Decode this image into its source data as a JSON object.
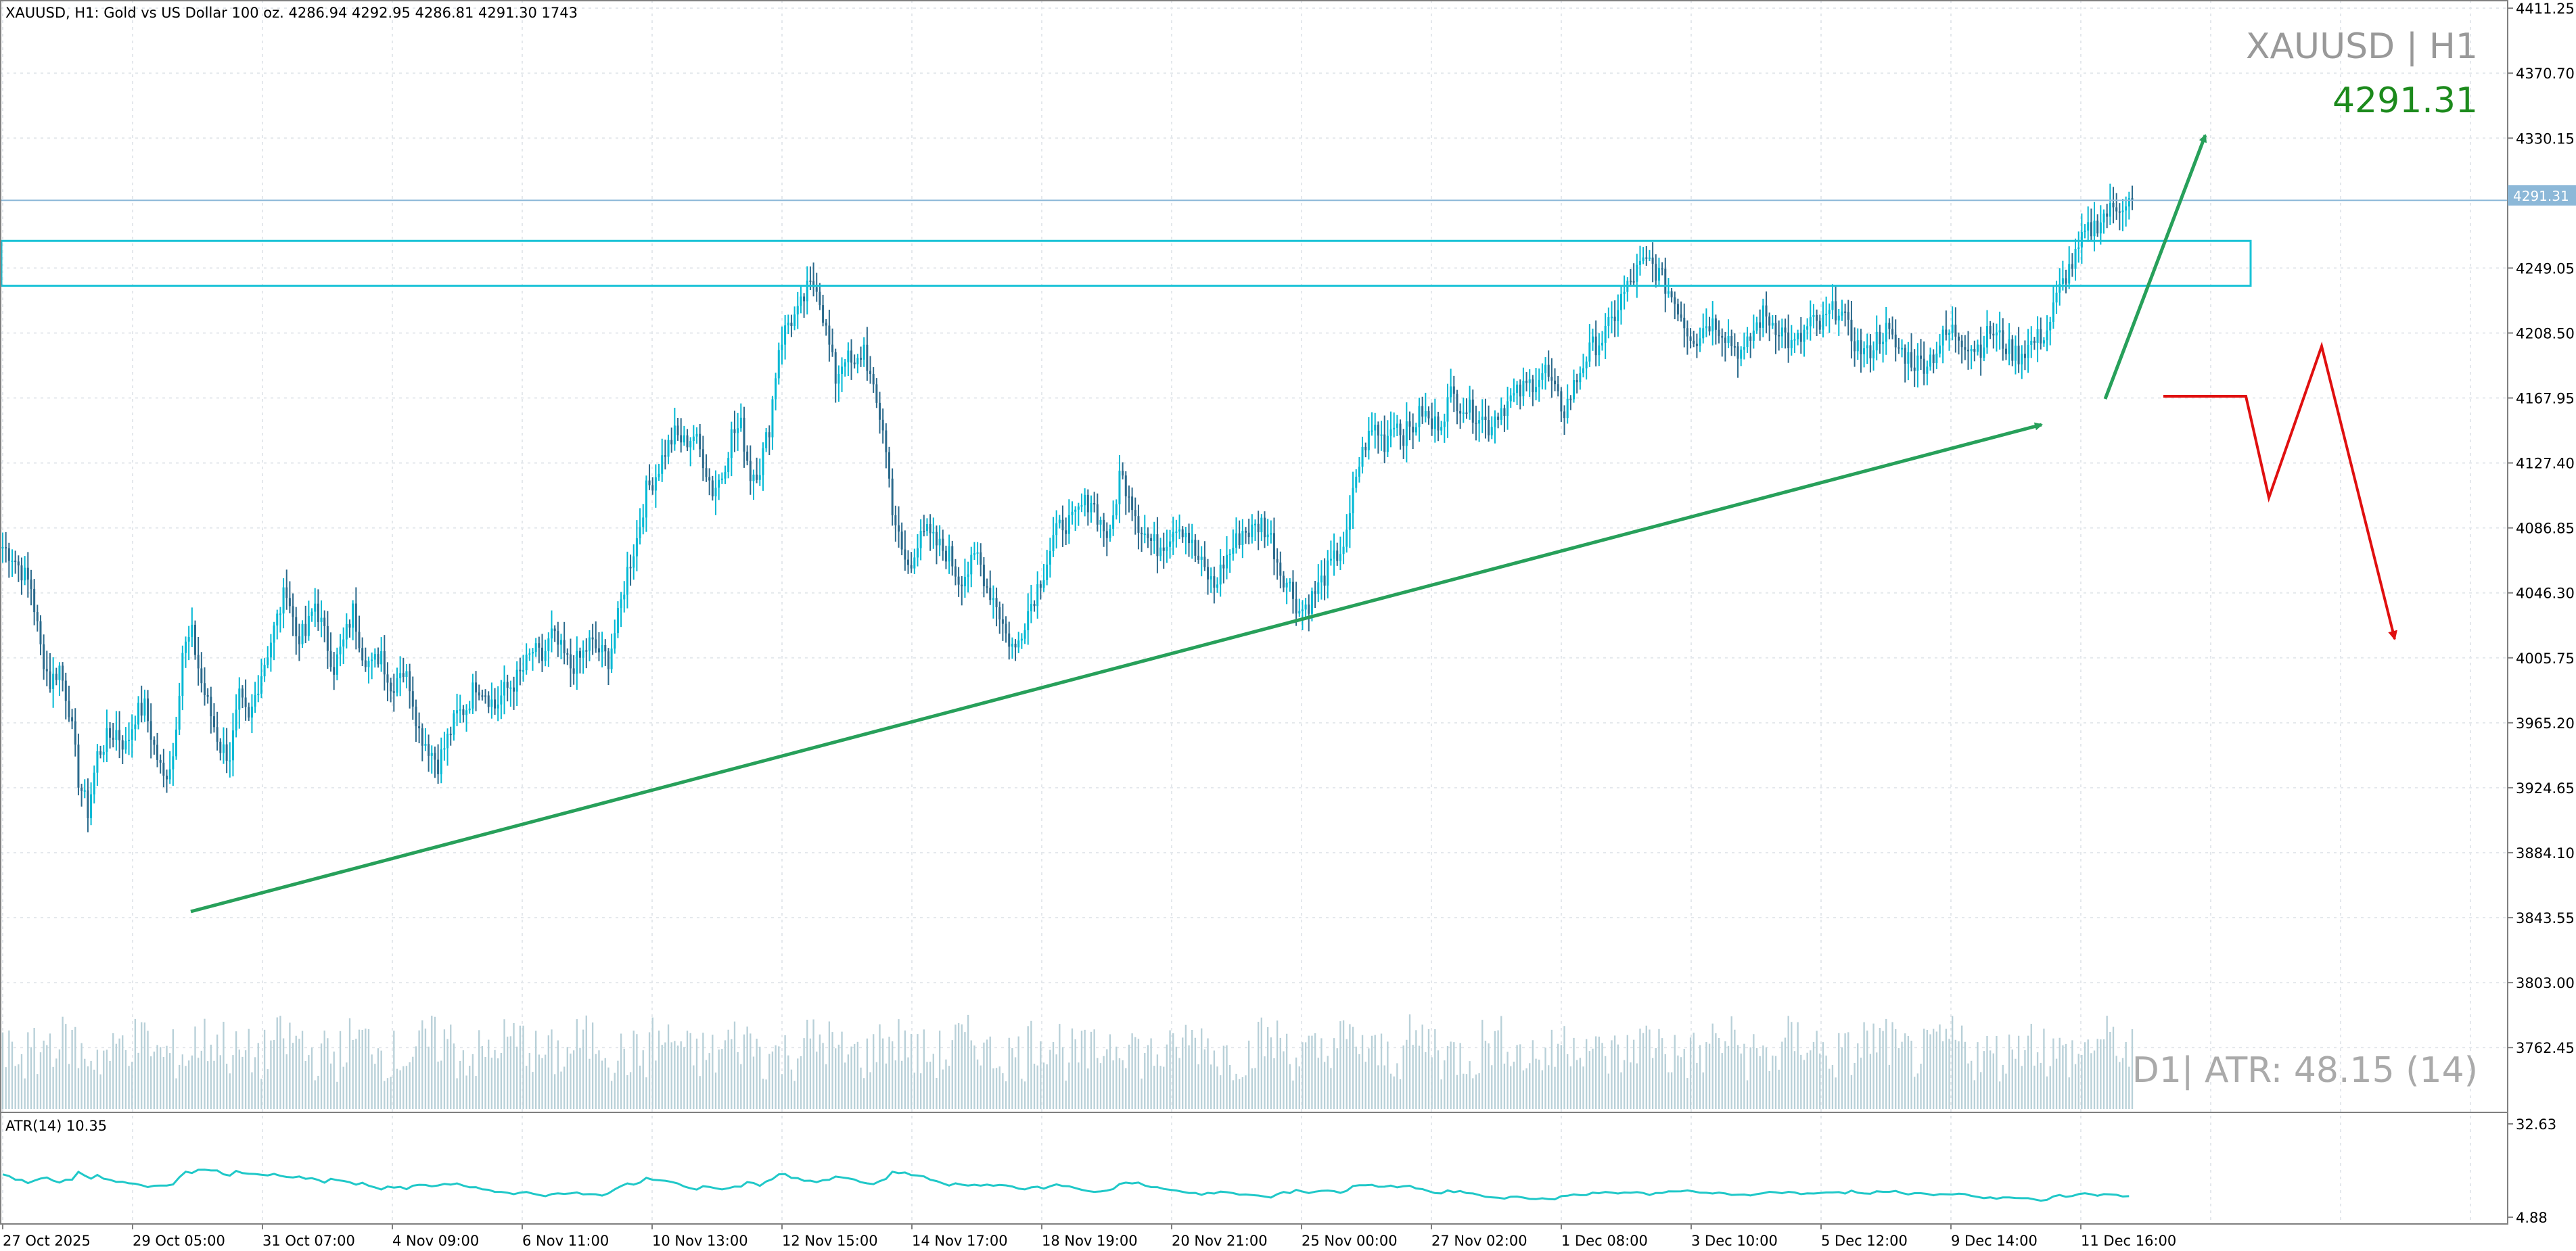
{
  "header": {
    "info": "XAUUSD, H1:  Gold vs US Dollar 100 oz.   4286.94 4292.95 4286.81 4291.30  1743"
  },
  "overlay": {
    "symbol": "XAUUSD | H1",
    "last_price": "4291.31",
    "atr_label": "D1| ATR: 48.15 (14)"
  },
  "price_axis": {
    "ticks": [
      "4411.25",
      "4370.70",
      "4330.15",
      "4249.05",
      "4208.50",
      "4167.95",
      "4127.40",
      "4086.85",
      "4046.30",
      "4005.75",
      "3965.20",
      "3924.65",
      "3884.10",
      "3843.55",
      "3803.00",
      "3762.45"
    ],
    "current_tag": "4291.31"
  },
  "indicator": {
    "label": "ATR(14) 10.35",
    "ticks": [
      "32.63",
      "4.88"
    ]
  },
  "time_axis": {
    "labels": [
      "27 Oct 2025",
      "29 Oct 05:00",
      "31 Oct 07:00",
      "4 Nov 09:00",
      "6 Nov 11:00",
      "10 Nov 13:00",
      "12 Nov 15:00",
      "14 Nov 17:00",
      "18 Nov 19:00",
      "20 Nov 21:00",
      "25 Nov 00:00",
      "27 Nov 02:00",
      "1 Dec 08:00",
      "3 Dec 10:00",
      "5 Dec 12:00",
      "9 Dec 14:00",
      "11 Dec 16:00"
    ]
  },
  "colors": {
    "candle": "#2b6a8c",
    "candle_alt": "#00b8d4",
    "zone": "#19c2d6",
    "trend": "#27a05a",
    "projection": "#e01010",
    "price_line": "#8cb8d8",
    "volume": "#b8d0d8",
    "atr_line": "#20c8c8",
    "grid": "#e4e8ec",
    "price_green": "#1c8a1c",
    "overlay_gray": "#999999"
  },
  "chart_data": {
    "type": "candlestick",
    "symbol": "XAUUSD",
    "timeframe": "H1",
    "ylim": [
      3722,
      4413
    ],
    "current_price": 4291.31,
    "resistance_zone": [
      4238,
      4266
    ],
    "x_labels": [
      "27 Oct 2025",
      "29 Oct 05:00",
      "31 Oct 07:00",
      "4 Nov 09:00",
      "6 Nov 11:00",
      "10 Nov 13:00",
      "12 Nov 15:00",
      "14 Nov 17:00",
      "18 Nov 19:00",
      "20 Nov 21:00",
      "25 Nov 00:00",
      "27 Nov 02:00",
      "1 Dec 08:00",
      "3 Dec 10:00",
      "5 Dec 12:00",
      "9 Dec 14:00",
      "11 Dec 16:00"
    ],
    "close_path": [
      4075,
      4070,
      4060,
      4050,
      4012,
      3990,
      4000,
      3975,
      3930,
      3910,
      3945,
      3955,
      3960,
      3950,
      3970,
      3975,
      3950,
      3930,
      3945,
      4010,
      4020,
      3990,
      3970,
      3950,
      3945,
      3980,
      3965,
      3990,
      4010,
      4030,
      4050,
      4020,
      4020,
      4040,
      4020,
      4000,
      4015,
      4035,
      4010,
      4000,
      4010,
      3985,
      4000,
      3990,
      3960,
      3950,
      3940,
      3955,
      3970,
      3975,
      3990,
      3985,
      3975,
      3985,
      3990,
      3998,
      4010,
      4005,
      4020,
      4010,
      4000,
      4005,
      4015,
      4010,
      4005,
      4030,
      4060,
      4080,
      4110,
      4120,
      4135,
      4145,
      4140,
      4145,
      4130,
      4110,
      4120,
      4145,
      4150,
      4120,
      4125,
      4150,
      4200,
      4215,
      4220,
      4235,
      4240,
      4210,
      4180,
      4195,
      4185,
      4200,
      4170,
      4150,
      4100,
      4070,
      4060,
      4090,
      4080,
      4075,
      4070,
      4055,
      4060,
      4070,
      4050,
      4040,
      4020,
      4010,
      4030,
      4045,
      4060,
      4080,
      4090,
      4090,
      4100,
      4105,
      4090,
      4080,
      4120,
      4110,
      4090,
      4080,
      4075,
      4080,
      4090,
      4085,
      4070,
      4060,
      4050,
      4065,
      4075,
      4085,
      4085,
      4090,
      4080,
      4060,
      4050,
      4035,
      4040,
      4050,
      4060,
      4070,
      4080,
      4120,
      4140,
      4150,
      4140,
      4155,
      4145,
      4150,
      4160,
      4150,
      4155,
      4170,
      4165,
      4160,
      4158,
      4150,
      4160,
      4165,
      4170,
      4175,
      4180,
      4185,
      4170,
      4160,
      4175,
      4190,
      4200,
      4205,
      4215,
      4230,
      4240,
      4250,
      4253,
      4245,
      4235,
      4225,
      4210,
      4205,
      4215,
      4215,
      4208,
      4200,
      4195,
      4210,
      4220,
      4215,
      4210,
      4200,
      4205,
      4215,
      4212,
      4220,
      4225,
      4210,
      4200,
      4195,
      4205,
      4210,
      4200,
      4195,
      4190,
      4190,
      4195,
      4205,
      4210,
      4205,
      4200,
      4200,
      4210,
      4205,
      4198,
      4195,
      4200,
      4205,
      4210,
      4230,
      4245,
      4255,
      4270,
      4275,
      4282,
      4286,
      4290,
      4291
    ]
  }
}
